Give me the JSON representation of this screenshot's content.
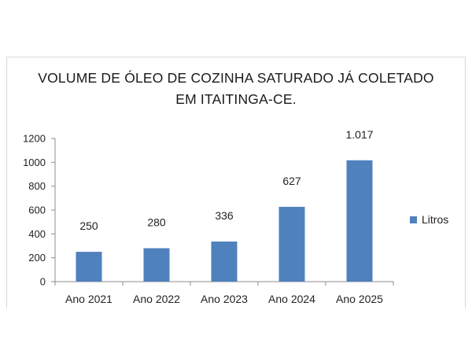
{
  "chart_data": {
    "type": "bar",
    "title": "VOLUME DE ÓLEO DE COZINHA SATURADO JÁ COLETADO EM ITAITINGA-CE.",
    "categories": [
      "Ano 2021",
      "Ano 2022",
      "Ano 2023",
      "Ano 2024",
      "Ano 2025"
    ],
    "series": [
      {
        "name": "Litros",
        "values": [
          250,
          280,
          336,
          627,
          1017
        ],
        "data_labels": [
          "250",
          "280",
          "336",
          "627",
          "1.017"
        ],
        "color": "#4f81bd"
      }
    ],
    "y_ticks": [
      "0",
      "200",
      "400",
      "600",
      "800",
      "1000",
      "1200"
    ],
    "ylim": [
      0,
      1200
    ],
    "grid": false,
    "legend_position": "right"
  }
}
